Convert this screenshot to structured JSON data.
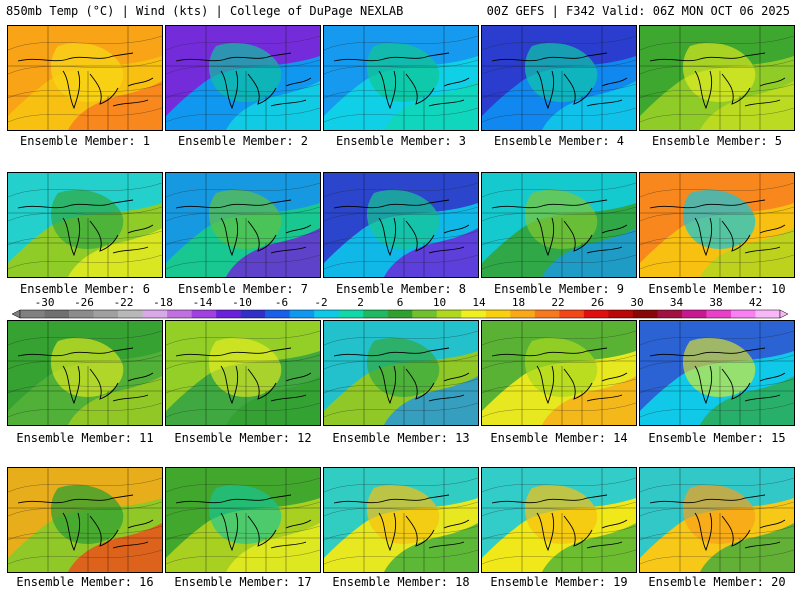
{
  "header": {
    "left_title": "850mb Temp (°C) | Wind (kts) | College of DuPage NEXLAB",
    "right_title": "00Z GEFS | F342 Valid: 06Z MON OCT 06 2025"
  },
  "colorbar": {
    "ticks": [
      "-30",
      "-26",
      "-22",
      "-18",
      "-14",
      "-10",
      "-6",
      "-2",
      "2",
      "6",
      "10",
      "14",
      "18",
      "22",
      "26",
      "30",
      "34",
      "38",
      "42"
    ],
    "colors": [
      "#808080",
      "#707070",
      "#8c8c8c",
      "#a0a0a0",
      "#b8b8b8",
      "#d8a8e8",
      "#c070e0",
      "#a040e0",
      "#6a20d8",
      "#3030c8",
      "#1860e8",
      "#1098f0",
      "#10c8e8",
      "#10d8a8",
      "#20b860",
      "#30a030",
      "#70c030",
      "#b0d820",
      "#f0f020",
      "#f8d010",
      "#f8a818",
      "#f87820",
      "#f04818",
      "#e01010",
      "#b80808",
      "#880808",
      "#a01040",
      "#c81890",
      "#e840c8",
      "#f880f0",
      "#f8b8f8"
    ]
  },
  "panels": [
    {
      "label": "Ensemble Member: 1",
      "bg": "#f8c010",
      "blobs": [
        {
          "fill": "#f8a018",
          "o": 0.9
        },
        {
          "fill": "#f87820",
          "o": 0.8
        },
        {
          "fill": "#f8d818",
          "o": 0.7
        }
      ]
    },
    {
      "label": "Ensemble Member: 2",
      "bg": "#1098f0",
      "blobs": [
        {
          "fill": "#8020d8",
          "o": 0.9
        },
        {
          "fill": "#10d8e0",
          "o": 0.8
        },
        {
          "fill": "#10c0a0",
          "o": 0.7
        }
      ]
    },
    {
      "label": "Ensemble Member: 3",
      "bg": "#10d0e8",
      "blobs": [
        {
          "fill": "#1890f0",
          "o": 0.85
        },
        {
          "fill": "#10d8b0",
          "o": 0.75
        },
        {
          "fill": "#10c890",
          "o": 0.7
        }
      ]
    },
    {
      "label": "Ensemble Member: 4",
      "bg": "#1088f0",
      "blobs": [
        {
          "fill": "#3030c8",
          "o": 0.85
        },
        {
          "fill": "#10d0e8",
          "o": 0.8
        },
        {
          "fill": "#10c8a8",
          "o": 0.7
        }
      ]
    },
    {
      "label": "Ensemble Member: 5",
      "bg": "#90cc28",
      "blobs": [
        {
          "fill": "#30a030",
          "o": 0.85
        },
        {
          "fill": "#c8e020",
          "o": 0.75
        },
        {
          "fill": "#f0f020",
          "o": 0.6
        }
      ]
    },
    {
      "label": "Ensemble Member: 6",
      "bg": "#90cc28",
      "blobs": [
        {
          "fill": "#10d0e8",
          "o": 0.85
        },
        {
          "fill": "#f0f020",
          "o": 0.75
        },
        {
          "fill": "#30a840",
          "o": 0.7
        }
      ]
    },
    {
      "label": "Ensemble Member: 7",
      "bg": "#18c890",
      "blobs": [
        {
          "fill": "#1890f0",
          "o": 0.85
        },
        {
          "fill": "#7020d8",
          "o": 0.8
        },
        {
          "fill": "#60c040",
          "o": 0.7
        }
      ]
    },
    {
      "label": "Ensemble Member: 8",
      "bg": "#10b8e8",
      "blobs": [
        {
          "fill": "#3030c8",
          "o": 0.85
        },
        {
          "fill": "#7020d8",
          "o": 0.8
        },
        {
          "fill": "#18c890",
          "o": 0.7
        }
      ]
    },
    {
      "label": "Ensemble Member: 9",
      "bg": "#30a848",
      "blobs": [
        {
          "fill": "#10d0e8",
          "o": 0.85
        },
        {
          "fill": "#1898f0",
          "o": 0.75
        },
        {
          "fill": "#80c830",
          "o": 0.7
        }
      ]
    },
    {
      "label": "Ensemble Member: 10",
      "bg": "#f8c010",
      "blobs": [
        {
          "fill": "#f87820",
          "o": 0.8
        },
        {
          "fill": "#a8d820",
          "o": 0.75
        },
        {
          "fill": "#10c8e0",
          "o": 0.7
        }
      ]
    },
    {
      "label": "Ensemble Member: 11",
      "bg": "#50b038",
      "blobs": [
        {
          "fill": "#30a030",
          "o": 0.85
        },
        {
          "fill": "#a8d020",
          "o": 0.75
        },
        {
          "fill": "#f0f020",
          "o": 0.6
        }
      ]
    },
    {
      "label": "Ensemble Member: 12",
      "bg": "#40a840",
      "blobs": [
        {
          "fill": "#a8d820",
          "o": 0.8
        },
        {
          "fill": "#30a030",
          "o": 0.8
        },
        {
          "fill": "#f0f020",
          "o": 0.6
        }
      ]
    },
    {
      "label": "Ensemble Member: 13",
      "bg": "#90c828",
      "blobs": [
        {
          "fill": "#10c0e8",
          "o": 0.85
        },
        {
          "fill": "#1890f0",
          "o": 0.75
        },
        {
          "fill": "#30a840",
          "o": 0.7
        }
      ]
    },
    {
      "label": "Ensemble Member: 14",
      "bg": "#e8e820",
      "blobs": [
        {
          "fill": "#40a838",
          "o": 0.85
        },
        {
          "fill": "#f8a818",
          "o": 0.75
        },
        {
          "fill": "#a8d820",
          "o": 0.7
        }
      ]
    },
    {
      "label": "Ensemble Member: 15",
      "bg": "#10c8e8",
      "blobs": [
        {
          "fill": "#3050d0",
          "o": 0.85
        },
        {
          "fill": "#30a840",
          "o": 0.75
        },
        {
          "fill": "#f0f020",
          "o": 0.6
        }
      ]
    },
    {
      "label": "Ensemble Member: 16",
      "bg": "#90c828",
      "blobs": [
        {
          "fill": "#f8a818",
          "o": 0.85
        },
        {
          "fill": "#f04818",
          "o": 0.8
        },
        {
          "fill": "#30a030",
          "o": 0.75
        }
      ]
    },
    {
      "label": "Ensemble Member: 17",
      "bg": "#a8d020",
      "blobs": [
        {
          "fill": "#30a030",
          "o": 0.85
        },
        {
          "fill": "#f0f020",
          "o": 0.75
        },
        {
          "fill": "#10c8a0",
          "o": 0.6
        }
      ]
    },
    {
      "label": "Ensemble Member: 18",
      "bg": "#e8e820",
      "blobs": [
        {
          "fill": "#10c8e0",
          "o": 0.85
        },
        {
          "fill": "#30a840",
          "o": 0.75
        },
        {
          "fill": "#f8c010",
          "o": 0.7
        }
      ]
    },
    {
      "label": "Ensemble Member: 19",
      "bg": "#f0e818",
      "blobs": [
        {
          "fill": "#10c8e8",
          "o": 0.85
        },
        {
          "fill": "#40b038",
          "o": 0.75
        },
        {
          "fill": "#f8c010",
          "o": 0.7
        }
      ]
    },
    {
      "label": "Ensemble Member: 20",
      "bg": "#f8c818",
      "blobs": [
        {
          "fill": "#10c8e8",
          "o": 0.85
        },
        {
          "fill": "#30a840",
          "o": 0.75
        },
        {
          "fill": "#f8a018",
          "o": 0.7
        }
      ]
    }
  ]
}
